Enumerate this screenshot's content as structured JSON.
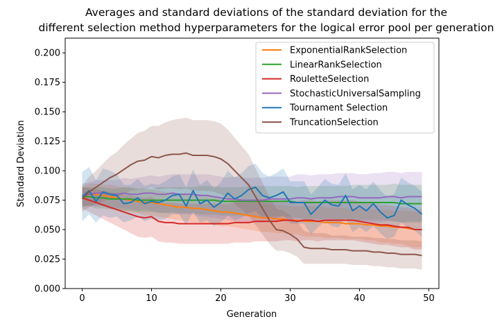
{
  "chart_data": {
    "type": "line",
    "title_lines": [
      "Averages and standard deviations of the standard deviation for the",
      "different selection method hyperparameters for the logical error pool per generation"
    ],
    "xlabel": "Generation",
    "ylabel": "Standard Deviation",
    "xlim": [
      -2.45,
      51.45
    ],
    "ylim": [
      0,
      0.2125
    ],
    "xticks": [
      0,
      10,
      20,
      30,
      40,
      50
    ],
    "xtick_labels": [
      "0",
      "10",
      "20",
      "30",
      "40",
      "50"
    ],
    "yticks": [
      0,
      0.025,
      0.05,
      0.075,
      0.1,
      0.125,
      0.15,
      0.175,
      0.2
    ],
    "ytick_labels": [
      "0.000",
      "0.025",
      "0.050",
      "0.075",
      "0.100",
      "0.125",
      "0.150",
      "0.175",
      "0.200"
    ],
    "legend_position": "upper right",
    "series": [
      {
        "name": "ExponentialRankSelection",
        "color": "#ff7f0e",
        "mean": [
          0.078,
          0.08,
          0.08,
          0.079,
          0.078,
          0.077,
          0.076,
          0.075,
          0.074,
          0.073,
          0.073,
          0.072,
          0.071,
          0.07,
          0.069,
          0.069,
          0.068,
          0.068,
          0.067,
          0.066,
          0.065,
          0.065,
          0.064,
          0.063,
          0.062,
          0.061,
          0.06,
          0.06,
          0.059,
          0.059,
          0.058,
          0.058,
          0.057,
          0.057,
          0.057,
          0.056,
          0.056,
          0.056,
          0.055,
          0.055,
          0.055,
          0.054,
          0.054,
          0.053,
          0.053,
          0.052,
          0.052,
          0.051,
          0.05,
          0.05
        ],
        "std": [
          0.008,
          0.009,
          0.009,
          0.009,
          0.01,
          0.01,
          0.01,
          0.01,
          0.01,
          0.011,
          0.011,
          0.011,
          0.011,
          0.011,
          0.011,
          0.012,
          0.012,
          0.012,
          0.012,
          0.012,
          0.012,
          0.012,
          0.012,
          0.012,
          0.012,
          0.012,
          0.012,
          0.012,
          0.012,
          0.012,
          0.012,
          0.012,
          0.013,
          0.013,
          0.013,
          0.013,
          0.013,
          0.013,
          0.013,
          0.013,
          0.013,
          0.013,
          0.013,
          0.014,
          0.014,
          0.014,
          0.014,
          0.015,
          0.015,
          0.015
        ]
      },
      {
        "name": "LinearRankSelection",
        "color": "#2ca02c",
        "mean": [
          0.078,
          0.078,
          0.077,
          0.077,
          0.076,
          0.076,
          0.076,
          0.076,
          0.075,
          0.075,
          0.075,
          0.075,
          0.075,
          0.075,
          0.075,
          0.075,
          0.075,
          0.075,
          0.075,
          0.075,
          0.074,
          0.074,
          0.074,
          0.074,
          0.074,
          0.074,
          0.074,
          0.074,
          0.074,
          0.074,
          0.074,
          0.073,
          0.073,
          0.073,
          0.073,
          0.073,
          0.073,
          0.073,
          0.073,
          0.073,
          0.073,
          0.073,
          0.073,
          0.073,
          0.073,
          0.073,
          0.072,
          0.072,
          0.072,
          0.072
        ],
        "std": [
          0.008,
          0.008,
          0.009,
          0.009,
          0.009,
          0.009,
          0.01,
          0.01,
          0.01,
          0.01,
          0.01,
          0.011,
          0.011,
          0.011,
          0.011,
          0.011,
          0.011,
          0.012,
          0.012,
          0.012,
          0.012,
          0.012,
          0.012,
          0.012,
          0.013,
          0.013,
          0.013,
          0.013,
          0.013,
          0.013,
          0.013,
          0.013,
          0.014,
          0.014,
          0.014,
          0.014,
          0.014,
          0.014,
          0.014,
          0.015,
          0.015,
          0.015,
          0.015,
          0.015,
          0.015,
          0.016,
          0.016,
          0.016,
          0.016,
          0.016
        ]
      },
      {
        "name": "RouletteSelection",
        "color": "#d62728",
        "mean": [
          0.077,
          0.075,
          0.073,
          0.071,
          0.069,
          0.067,
          0.065,
          0.063,
          0.061,
          0.06,
          0.061,
          0.057,
          0.056,
          0.056,
          0.055,
          0.055,
          0.055,
          0.055,
          0.055,
          0.055,
          0.055,
          0.055,
          0.056,
          0.056,
          0.056,
          0.057,
          0.057,
          0.057,
          0.057,
          0.058,
          0.058,
          0.057,
          0.058,
          0.058,
          0.057,
          0.058,
          0.058,
          0.058,
          0.058,
          0.058,
          0.057,
          0.056,
          0.055,
          0.054,
          0.054,
          0.053,
          0.052,
          0.052,
          0.05,
          0.05
        ],
        "std": [
          0.009,
          0.01,
          0.011,
          0.012,
          0.013,
          0.014,
          0.015,
          0.016,
          0.017,
          0.017,
          0.017,
          0.017,
          0.017,
          0.017,
          0.017,
          0.017,
          0.017,
          0.017,
          0.017,
          0.017,
          0.017,
          0.017,
          0.017,
          0.017,
          0.017,
          0.017,
          0.017,
          0.017,
          0.017,
          0.017,
          0.017,
          0.017,
          0.017,
          0.017,
          0.017,
          0.017,
          0.017,
          0.017,
          0.017,
          0.017,
          0.017,
          0.017,
          0.017,
          0.017,
          0.017,
          0.017,
          0.017,
          0.017,
          0.017,
          0.017
        ]
      },
      {
        "name": "StochasticUniversalSampling",
        "color": "#9467bd",
        "mean": [
          0.079,
          0.08,
          0.081,
          0.081,
          0.08,
          0.08,
          0.081,
          0.08,
          0.08,
          0.081,
          0.081,
          0.08,
          0.08,
          0.081,
          0.08,
          0.08,
          0.08,
          0.079,
          0.079,
          0.078,
          0.077,
          0.076,
          0.076,
          0.075,
          0.075,
          0.075,
          0.075,
          0.076,
          0.076,
          0.076,
          0.076,
          0.077,
          0.077,
          0.076,
          0.077,
          0.077,
          0.077,
          0.078,
          0.078,
          0.078,
          0.077,
          0.077,
          0.077,
          0.077,
          0.078,
          0.078,
          0.077,
          0.078,
          0.078,
          0.078
        ],
        "std": [
          0.01,
          0.01,
          0.011,
          0.011,
          0.012,
          0.012,
          0.013,
          0.013,
          0.014,
          0.014,
          0.015,
          0.015,
          0.016,
          0.016,
          0.017,
          0.017,
          0.017,
          0.018,
          0.018,
          0.018,
          0.018,
          0.018,
          0.019,
          0.019,
          0.019,
          0.019,
          0.019,
          0.019,
          0.019,
          0.019,
          0.019,
          0.02,
          0.02,
          0.02,
          0.02,
          0.02,
          0.02,
          0.02,
          0.02,
          0.02,
          0.02,
          0.02,
          0.021,
          0.021,
          0.021,
          0.021,
          0.021,
          0.021,
          0.021,
          0.021
        ]
      },
      {
        "name": "Tournament Selection",
        "color": "#1f77b4",
        "mean": [
          0.078,
          0.083,
          0.074,
          0.082,
          0.08,
          0.079,
          0.072,
          0.073,
          0.077,
          0.072,
          0.074,
          0.073,
          0.075,
          0.079,
          0.08,
          0.07,
          0.083,
          0.072,
          0.075,
          0.069,
          0.073,
          0.081,
          0.076,
          0.079,
          0.084,
          0.086,
          0.079,
          0.077,
          0.079,
          0.082,
          0.073,
          0.073,
          0.073,
          0.063,
          0.069,
          0.075,
          0.071,
          0.07,
          0.079,
          0.066,
          0.07,
          0.066,
          0.072,
          0.065,
          0.06,
          0.062,
          0.075,
          0.071,
          0.068,
          0.063
        ],
        "std": [
          0.021,
          0.02,
          0.018,
          0.02,
          0.02,
          0.018,
          0.016,
          0.015,
          0.016,
          0.015,
          0.015,
          0.015,
          0.016,
          0.016,
          0.017,
          0.016,
          0.018,
          0.016,
          0.017,
          0.016,
          0.017,
          0.019,
          0.018,
          0.019,
          0.02,
          0.02,
          0.019,
          0.018,
          0.019,
          0.02,
          0.018,
          0.018,
          0.018,
          0.017,
          0.017,
          0.018,
          0.018,
          0.018,
          0.019,
          0.018,
          0.018,
          0.018,
          0.019,
          0.018,
          0.018,
          0.018,
          0.019,
          0.019,
          0.019,
          0.019
        ]
      },
      {
        "name": "TruncationSelection",
        "color": "#8c564b",
        "mean": [
          0.076,
          0.082,
          0.086,
          0.09,
          0.094,
          0.097,
          0.101,
          0.105,
          0.108,
          0.109,
          0.112,
          0.111,
          0.113,
          0.114,
          0.114,
          0.115,
          0.113,
          0.113,
          0.113,
          0.112,
          0.11,
          0.106,
          0.1,
          0.094,
          0.088,
          0.078,
          0.068,
          0.058,
          0.05,
          0.049,
          0.046,
          0.042,
          0.035,
          0.034,
          0.034,
          0.034,
          0.033,
          0.033,
          0.033,
          0.032,
          0.032,
          0.032,
          0.031,
          0.031,
          0.03,
          0.03,
          0.029,
          0.029,
          0.029,
          0.028
        ],
        "std": [
          0.011,
          0.013,
          0.014,
          0.016,
          0.018,
          0.019,
          0.021,
          0.022,
          0.024,
          0.025,
          0.026,
          0.027,
          0.028,
          0.029,
          0.03,
          0.03,
          0.03,
          0.03,
          0.03,
          0.03,
          0.03,
          0.029,
          0.028,
          0.027,
          0.026,
          0.024,
          0.022,
          0.02,
          0.018,
          0.017,
          0.016,
          0.015,
          0.014,
          0.013,
          0.013,
          0.013,
          0.012,
          0.012,
          0.012,
          0.012,
          0.012,
          0.012,
          0.012,
          0.012,
          0.012,
          0.012,
          0.012,
          0.012,
          0.012,
          0.012
        ]
      }
    ]
  }
}
